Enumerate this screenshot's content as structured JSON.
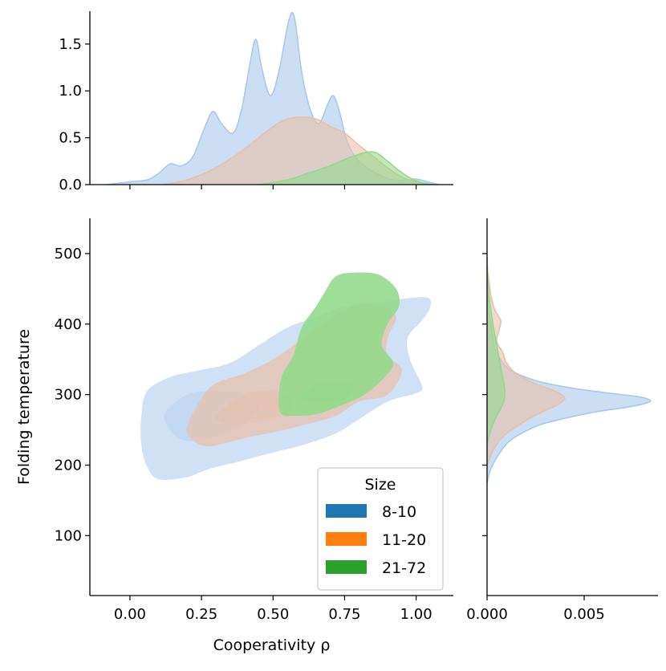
{
  "chart_data": {
    "type": "jointplot-kde",
    "legend": {
      "title": "Size",
      "placement": "lower-right",
      "entries": [
        {
          "label": "8-10",
          "color": "#1f77b4"
        },
        {
          "label": "11-20",
          "color": "#ff7f0e"
        },
        {
          "label": "21-72",
          "color": "#2ca02c"
        }
      ]
    },
    "main": {
      "xlabel": "Cooperativity ρ",
      "ylabel": "Folding temperature",
      "xlim": [
        -0.14,
        1.13
      ],
      "ylim": [
        15,
        550
      ],
      "xticks": [
        "0.00",
        "0.25",
        "0.50",
        "0.75",
        "1.00"
      ],
      "xtick_values": [
        0,
        0.25,
        0.5,
        0.75,
        1.0
      ],
      "yticks": [
        "100",
        "200",
        "300",
        "400",
        "500"
      ],
      "ytick_values": [
        100,
        200,
        300,
        400,
        500
      ],
      "regions": [
        {
          "series": "8-10",
          "color": "#a9c8ec",
          "opacity": 0.55,
          "outline": [
            [
              0.04,
              270
            ],
            [
              0.06,
              305
            ],
            [
              0.14,
              325
            ],
            [
              0.25,
              335
            ],
            [
              0.35,
              345
            ],
            [
              0.45,
              370
            ],
            [
              0.55,
              395
            ],
            [
              0.65,
              410
            ],
            [
              0.75,
              425
            ],
            [
              0.88,
              432
            ],
            [
              1.03,
              438
            ],
            [
              1.05,
              425
            ],
            [
              1.02,
              405
            ],
            [
              0.97,
              380
            ],
            [
              0.98,
              348
            ],
            [
              1.02,
              312
            ],
            [
              1.0,
              302
            ],
            [
              0.9,
              290
            ],
            [
              0.8,
              265
            ],
            [
              0.72,
              245
            ],
            [
              0.6,
              228
            ],
            [
              0.5,
              218
            ],
            [
              0.38,
              205
            ],
            [
              0.28,
              195
            ],
            [
              0.2,
              183
            ],
            [
              0.1,
              180
            ],
            [
              0.06,
              198
            ],
            [
              0.04,
              228
            ]
          ],
          "core": [
            [
              0.12,
              270
            ],
            [
              0.2,
              300
            ],
            [
              0.3,
              305
            ],
            [
              0.4,
              300
            ],
            [
              0.45,
              285
            ],
            [
              0.4,
              258
            ],
            [
              0.3,
              240
            ],
            [
              0.18,
              236
            ]
          ]
        },
        {
          "series": "11-20",
          "color": "#e8bfa8",
          "opacity": 0.7,
          "outline": [
            [
              0.2,
              255
            ],
            [
              0.28,
              310
            ],
            [
              0.4,
              330
            ],
            [
              0.5,
              350
            ],
            [
              0.6,
              378
            ],
            [
              0.68,
              403
            ],
            [
              0.75,
              420
            ],
            [
              0.8,
              428
            ],
            [
              0.88,
              425
            ],
            [
              0.93,
              410
            ],
            [
              0.9,
              380
            ],
            [
              0.9,
              355
            ],
            [
              0.95,
              335
            ],
            [
              0.9,
              300
            ],
            [
              0.8,
              290
            ],
            [
              0.72,
              270
            ],
            [
              0.62,
              258
            ],
            [
              0.52,
              248
            ],
            [
              0.42,
              240
            ],
            [
              0.3,
              228
            ],
            [
              0.25,
              228
            ],
            [
              0.22,
              236
            ]
          ],
          "core": [
            [
              0.3,
              270
            ],
            [
              0.4,
              300
            ],
            [
              0.5,
              305
            ],
            [
              0.57,
              295
            ],
            [
              0.55,
              275
            ],
            [
              0.45,
              262
            ],
            [
              0.35,
              258
            ]
          ]
        },
        {
          "series": "21-72",
          "color": "#92d98a",
          "opacity": 0.88,
          "outline": [
            [
              0.52,
              290
            ],
            [
              0.53,
              325
            ],
            [
              0.57,
              355
            ],
            [
              0.6,
              395
            ],
            [
              0.65,
              425
            ],
            [
              0.68,
              445
            ],
            [
              0.72,
              468
            ],
            [
              0.79,
              473
            ],
            [
              0.87,
              470
            ],
            [
              0.93,
              450
            ],
            [
              0.94,
              425
            ],
            [
              0.9,
              400
            ],
            [
              0.88,
              370
            ],
            [
              0.92,
              345
            ],
            [
              0.89,
              325
            ],
            [
              0.82,
              300
            ],
            [
              0.74,
              285
            ],
            [
              0.65,
              272
            ],
            [
              0.57,
              270
            ],
            [
              0.53,
              272
            ]
          ],
          "core": [
            [
              0.6,
              295
            ],
            [
              0.65,
              315
            ],
            [
              0.72,
              318
            ],
            [
              0.78,
              312
            ],
            [
              0.76,
              296
            ],
            [
              0.68,
              288
            ]
          ]
        }
      ]
    },
    "top_marginal": {
      "yticks": [
        "0.0",
        "0.5",
        "1.0",
        "1.5"
      ],
      "ytick_values": [
        0,
        0.5,
        1.0,
        1.5
      ],
      "ylim": [
        0,
        1.85
      ],
      "series": [
        {
          "name": "8-10",
          "color": "#a9c8ec",
          "x": [
            -0.08,
            0.0,
            0.06,
            0.1,
            0.14,
            0.18,
            0.22,
            0.26,
            0.29,
            0.32,
            0.36,
            0.39,
            0.42,
            0.44,
            0.46,
            0.49,
            0.52,
            0.555,
            0.575,
            0.6,
            0.63,
            0.66,
            0.69,
            0.71,
            0.73,
            0.76,
            0.8,
            0.86,
            0.92,
            0.97,
            1.0,
            1.04,
            1.08
          ],
          "y": [
            0.0,
            0.03,
            0.05,
            0.12,
            0.22,
            0.2,
            0.3,
            0.6,
            0.78,
            0.65,
            0.55,
            0.8,
            1.3,
            1.55,
            1.25,
            0.95,
            1.2,
            1.75,
            1.78,
            1.2,
            0.8,
            0.65,
            0.85,
            0.95,
            0.8,
            0.45,
            0.25,
            0.12,
            0.05,
            0.05,
            0.06,
            0.03,
            0.0
          ]
        },
        {
          "name": "11-20",
          "color": "#e8bfa8",
          "x": [
            0.12,
            0.2,
            0.3,
            0.4,
            0.5,
            0.55,
            0.6,
            0.65,
            0.7,
            0.75,
            0.8,
            0.85,
            0.9,
            0.95,
            1.0,
            1.05
          ],
          "y": [
            0.0,
            0.05,
            0.18,
            0.38,
            0.62,
            0.7,
            0.72,
            0.7,
            0.62,
            0.55,
            0.42,
            0.3,
            0.18,
            0.08,
            0.03,
            0.0
          ]
        },
        {
          "name": "21-72",
          "color": "#92d98a",
          "x": [
            0.45,
            0.55,
            0.62,
            0.7,
            0.76,
            0.82,
            0.86,
            0.9,
            0.94,
            0.98,
            1.02,
            1.06
          ],
          "y": [
            0.0,
            0.05,
            0.12,
            0.2,
            0.28,
            0.34,
            0.34,
            0.25,
            0.15,
            0.07,
            0.02,
            0.0
          ]
        }
      ]
    },
    "right_marginal": {
      "xticks": [
        "0.000",
        "0.005"
      ],
      "xtick_values": [
        0,
        0.005
      ],
      "xlim": [
        0,
        0.0088
      ],
      "series": [
        {
          "name": "8-10",
          "color": "#a9c8ec",
          "y": [
            175,
            195,
            215,
            235,
            255,
            265,
            275,
            282,
            288,
            292,
            297,
            303,
            310,
            320,
            335,
            350,
            365,
            380,
            400,
            420,
            450,
            480,
            495
          ],
          "x": [
            0.0,
            0.0002,
            0.0006,
            0.0012,
            0.0025,
            0.0038,
            0.0055,
            0.0072,
            0.0082,
            0.0084,
            0.0078,
            0.006,
            0.0042,
            0.0025,
            0.0012,
            0.0007,
            0.0004,
            0.0003,
            0.0002,
            0.0001,
            5e-05,
            2e-05,
            0.0
          ]
        },
        {
          "name": "11-20",
          "color": "#e8bfa8",
          "y": [
            200,
            220,
            240,
            260,
            275,
            285,
            295,
            305,
            315,
            330,
            345,
            360,
            375,
            390,
            405,
            420,
            440,
            460,
            480
          ],
          "x": [
            0.0,
            0.0003,
            0.0008,
            0.0018,
            0.0028,
            0.0036,
            0.004,
            0.0035,
            0.0025,
            0.0015,
            0.001,
            0.0008,
            0.0005,
            0.0006,
            0.0007,
            0.0004,
            0.0002,
            0.0001,
            0.0
          ]
        },
        {
          "name": "21-72",
          "color": "#92d98a",
          "y": [
            230,
            250,
            265,
            280,
            295,
            310,
            325,
            340,
            355,
            370,
            385,
            400,
            420,
            440,
            460,
            480
          ],
          "x": [
            0.0,
            0.0002,
            0.0004,
            0.0007,
            0.0009,
            0.0009,
            0.0008,
            0.0007,
            0.0006,
            0.0005,
            0.0004,
            0.0003,
            0.0002,
            0.0001,
            5e-05,
            0.0
          ]
        }
      ]
    }
  }
}
